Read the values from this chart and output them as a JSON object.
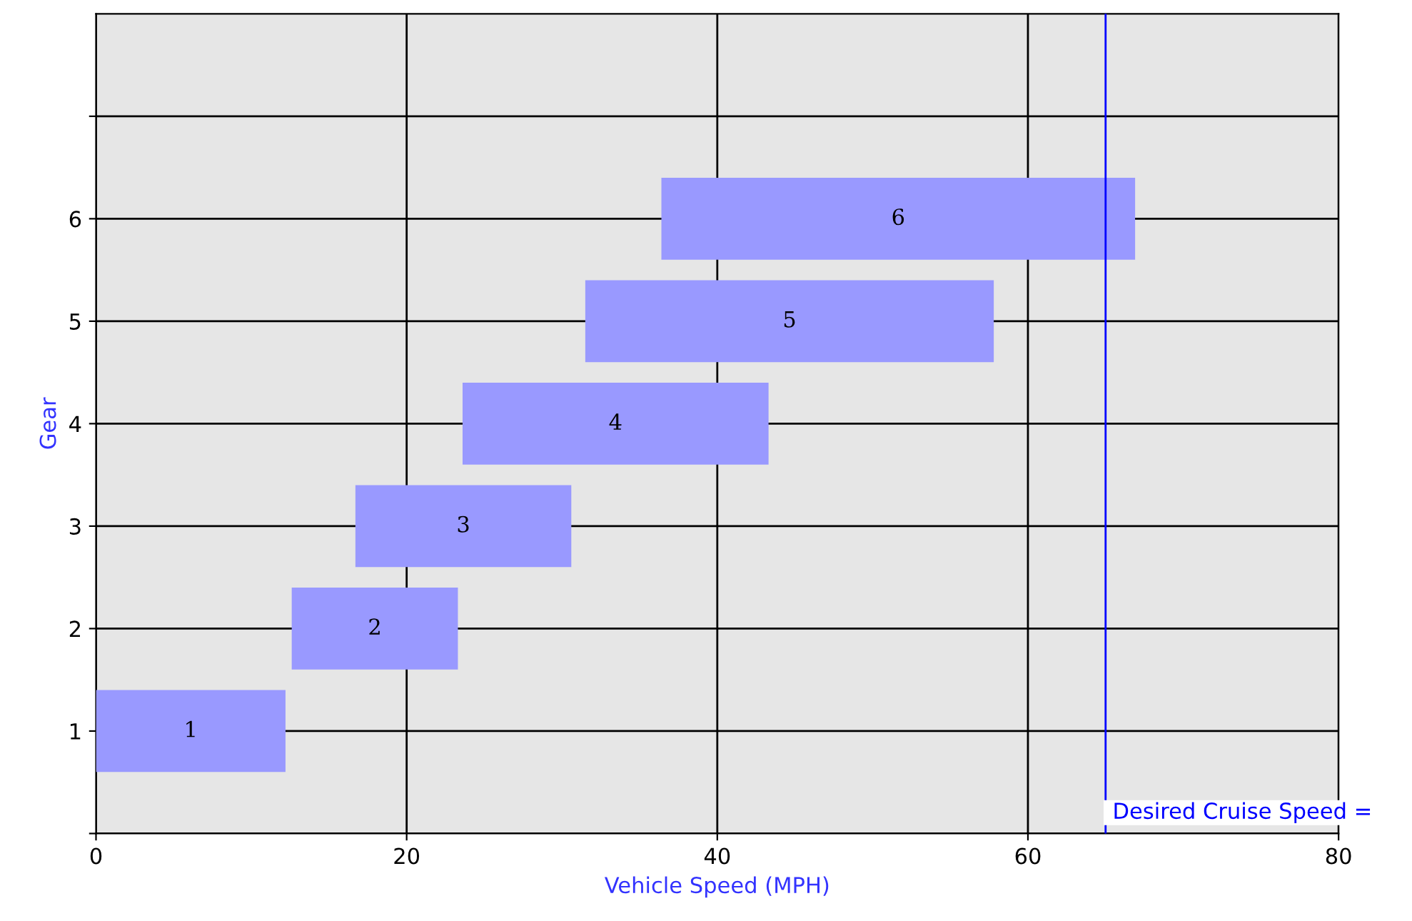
{
  "chart_data": {
    "type": "bar",
    "orientation": "horizontal",
    "xlabel": "Vehicle Speed (MPH)",
    "ylabel": "Gear",
    "categories": [
      "6",
      "5",
      "4",
      "3",
      "2",
      "1"
    ],
    "base": [
      36.4,
      31.5,
      23.6,
      16.7,
      12.6,
      0
    ],
    "values": [
      30.5,
      26.3,
      19.7,
      13.9,
      10.7,
      12.2
    ],
    "color": "#9999ff",
    "xlim": [
      0,
      80
    ],
    "xticks": [
      0,
      20,
      40,
      60,
      80
    ],
    "ref_lines": [
      {
        "axis": "x",
        "value": 65,
        "label": "Desired Cruise Speed =",
        "color": "#0000ff"
      }
    ],
    "grid": true
  }
}
